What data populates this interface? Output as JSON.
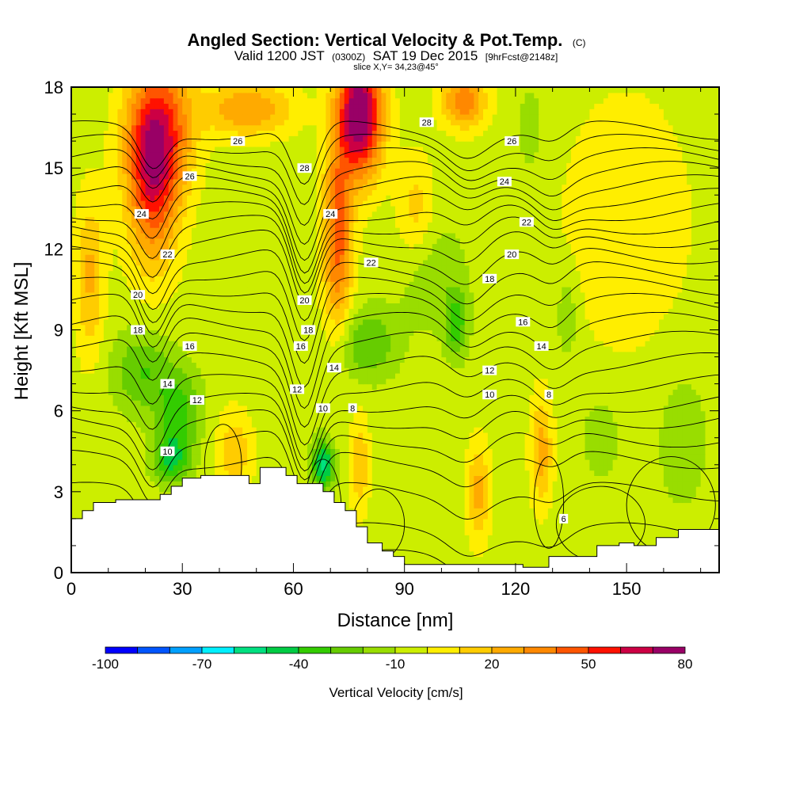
{
  "chart_data": {
    "type": "heatmap",
    "title": "Angled Section: Vertical Velocity & Pot.Temp.",
    "title_unit": "(C)",
    "subtitle_parts": [
      "Valid 1200 JST",
      "(0300Z)",
      "SAT 19 Dec 2015",
      "[9hrFcst@2148z]"
    ],
    "slice_note": "slice X,Y= 34,23@45°",
    "xlabel": "Distance [nm]",
    "ylabel": "Height [Kft MSL]",
    "xlim": [
      0,
      175
    ],
    "ylim": [
      0,
      18
    ],
    "x_ticks": [
      0,
      30,
      60,
      90,
      120,
      150
    ],
    "y_ticks": [
      0,
      3,
      6,
      9,
      12,
      15,
      18
    ],
    "background_value": -5,
    "cells": [
      {
        "x": 22,
        "y": 14.5,
        "v": 48,
        "sx": 7,
        "sy": 3.2
      },
      {
        "x": 24,
        "y": 16.5,
        "v": 40,
        "sx": 9,
        "sy": 2.5
      },
      {
        "x": 48,
        "y": 17.2,
        "v": 30,
        "sx": 12,
        "sy": 1.0
      },
      {
        "x": 78,
        "y": 17,
        "v": 85,
        "sx": 6,
        "sy": 2.3
      },
      {
        "x": 72,
        "y": 12.5,
        "v": 45,
        "sx": 4,
        "sy": 3.5
      },
      {
        "x": 106,
        "y": 17.5,
        "v": 38,
        "sx": 6,
        "sy": 1.0
      },
      {
        "x": 5,
        "y": 11,
        "v": 22,
        "sx": 4,
        "sy": 3
      },
      {
        "x": 19,
        "y": 7.5,
        "v": -30,
        "sx": 8,
        "sy": 1.5
      },
      {
        "x": 29,
        "y": 6,
        "v": -35,
        "sx": 6,
        "sy": 1.5
      },
      {
        "x": 27,
        "y": 4.2,
        "v": -40,
        "sx": 5,
        "sy": 0.9
      },
      {
        "x": 80,
        "y": 8.5,
        "v": -30,
        "sx": 8,
        "sy": 1.3
      },
      {
        "x": 68,
        "y": 4,
        "v": -55,
        "sx": 3,
        "sy": 0.9
      },
      {
        "x": 104,
        "y": 9.2,
        "v": -35,
        "sx": 3,
        "sy": 1.2
      },
      {
        "x": 98,
        "y": 11,
        "v": -18,
        "sx": 9,
        "sy": 2
      },
      {
        "x": 134,
        "y": 9.5,
        "v": -20,
        "sx": 3,
        "sy": 1.6
      },
      {
        "x": 165,
        "y": 5,
        "v": -15,
        "sx": 8,
        "sy": 3
      },
      {
        "x": 143,
        "y": 5,
        "v": -18,
        "sx": 5,
        "sy": 1.5
      },
      {
        "x": 124,
        "y": 16.5,
        "v": -18,
        "sx": 3,
        "sy": 1.5
      },
      {
        "x": 78,
        "y": 4,
        "v": 20,
        "sx": 2.5,
        "sy": 1.8
      },
      {
        "x": 110,
        "y": 3,
        "v": 25,
        "sx": 3,
        "sy": 1.8
      },
      {
        "x": 127,
        "y": 4.5,
        "v": 25,
        "sx": 3,
        "sy": 2
      },
      {
        "x": 44,
        "y": 4.5,
        "v": 18,
        "sx": 5,
        "sy": 1.5
      },
      {
        "x": 93,
        "y": 13.5,
        "v": 14,
        "sx": 5,
        "sy": 2
      },
      {
        "x": 150,
        "y": 13,
        "v": 8,
        "sx": 18,
        "sy": 5
      }
    ],
    "color_levels": [
      -100,
      -90,
      -80,
      -70,
      -60,
      -50,
      -40,
      -30,
      -20,
      -10,
      0,
      10,
      20,
      30,
      40,
      50,
      60,
      70,
      80
    ],
    "colors": [
      "#0000ff",
      "#0055ff",
      "#00a0ff",
      "#00f0ff",
      "#00e080",
      "#00cc44",
      "#33cc00",
      "#66cc00",
      "#99dd00",
      "#ccee00",
      "#ffee00",
      "#ffcc00",
      "#ffaa00",
      "#ff8800",
      "#ff5500",
      "#ff1100",
      "#cc0044",
      "#990066"
    ],
    "colorbar_labels": [
      "-100",
      "-70",
      "-40",
      "-10",
      "20",
      "50",
      "80"
    ],
    "colorbar_label_values": [
      -100,
      -70,
      -40,
      -10,
      20,
      50,
      80
    ],
    "colorbar_title": "Vertical Velocity [cm/s]",
    "theta_contours": [
      6,
      7,
      8,
      9,
      10,
      11,
      12,
      13,
      14,
      15,
      16,
      17,
      18,
      19,
      20,
      21,
      22,
      23,
      24,
      25,
      26,
      27,
      28,
      29
    ],
    "theta_level_heights": [
      0.5,
      1.5,
      3.0,
      4.2,
      5.0,
      5.7,
      6.3,
      7.0,
      7.8,
      8.6,
      9.3,
      10.0,
      10.6,
      11.2,
      11.8,
      12.4,
      12.9,
      13.4,
      13.9,
      14.4,
      14.9,
      15.4,
      15.9,
      16.4
    ],
    "contour_labels": [
      {
        "x": 45,
        "y": 16.0,
        "text": "26"
      },
      {
        "x": 32,
        "y": 14.7,
        "text": "26"
      },
      {
        "x": 19,
        "y": 13.3,
        "text": "24"
      },
      {
        "x": 26,
        "y": 11.8,
        "text": "22"
      },
      {
        "x": 18,
        "y": 10.3,
        "text": "20"
      },
      {
        "x": 18,
        "y": 9.0,
        "text": "18"
      },
      {
        "x": 32,
        "y": 8.4,
        "text": "16"
      },
      {
        "x": 26,
        "y": 7.0,
        "text": "14"
      },
      {
        "x": 34,
        "y": 6.4,
        "text": "12"
      },
      {
        "x": 26,
        "y": 4.5,
        "text": "10"
      },
      {
        "x": 63,
        "y": 10.1,
        "text": "20"
      },
      {
        "x": 64,
        "y": 9.0,
        "text": "18"
      },
      {
        "x": 62,
        "y": 8.4,
        "text": "16"
      },
      {
        "x": 61,
        "y": 6.8,
        "text": "12"
      },
      {
        "x": 68,
        "y": 6.1,
        "text": "10"
      },
      {
        "x": 70,
        "y": 13.3,
        "text": "24"
      },
      {
        "x": 63,
        "y": 15.0,
        "text": "28"
      },
      {
        "x": 76,
        "y": 6.1,
        "text": "8"
      },
      {
        "x": 71,
        "y": 7.6,
        "text": "14"
      },
      {
        "x": 81,
        "y": 11.5,
        "text": "22"
      },
      {
        "x": 96,
        "y": 16.7,
        "text": "28"
      },
      {
        "x": 119,
        "y": 16.0,
        "text": "26"
      },
      {
        "x": 117,
        "y": 14.5,
        "text": "24"
      },
      {
        "x": 123,
        "y": 13.0,
        "text": "22"
      },
      {
        "x": 119,
        "y": 11.8,
        "text": "20"
      },
      {
        "x": 113,
        "y": 10.9,
        "text": "18"
      },
      {
        "x": 122,
        "y": 9.3,
        "text": "16"
      },
      {
        "x": 127,
        "y": 8.4,
        "text": "14"
      },
      {
        "x": 113,
        "y": 7.5,
        "text": "12"
      },
      {
        "x": 113,
        "y": 6.6,
        "text": "10"
      },
      {
        "x": 129,
        "y": 6.6,
        "text": "8"
      },
      {
        "x": 133,
        "y": 2.0,
        "text": "6"
      }
    ],
    "terrain": [
      [
        0,
        2.0
      ],
      [
        3,
        2.0
      ],
      [
        3,
        2.3
      ],
      [
        6,
        2.3
      ],
      [
        6,
        2.6
      ],
      [
        12,
        2.6
      ],
      [
        12,
        2.7
      ],
      [
        24,
        2.7
      ],
      [
        24,
        2.9
      ],
      [
        27,
        2.9
      ],
      [
        27,
        3.2
      ],
      [
        30,
        3.2
      ],
      [
        30,
        3.5
      ],
      [
        35,
        3.5
      ],
      [
        35,
        3.6
      ],
      [
        48,
        3.6
      ],
      [
        48,
        3.3
      ],
      [
        51,
        3.3
      ],
      [
        51,
        3.9
      ],
      [
        58,
        3.9
      ],
      [
        58,
        3.6
      ],
      [
        61,
        3.6
      ],
      [
        61,
        3.3
      ],
      [
        68,
        3.3
      ],
      [
        68,
        3.0
      ],
      [
        71,
        3.0
      ],
      [
        71,
        2.6
      ],
      [
        74,
        2.6
      ],
      [
        74,
        2.3
      ],
      [
        77,
        2.3
      ],
      [
        77,
        1.7
      ],
      [
        80,
        1.7
      ],
      [
        80,
        1.1
      ],
      [
        84,
        1.1
      ],
      [
        84,
        0.8
      ],
      [
        87,
        0.8
      ],
      [
        87,
        0.6
      ],
      [
        90,
        0.6
      ],
      [
        90,
        0.3
      ],
      [
        122,
        0.3
      ],
      [
        122,
        0.2
      ],
      [
        129,
        0.2
      ],
      [
        129,
        0.6
      ],
      [
        142,
        0.6
      ],
      [
        142,
        1.0
      ],
      [
        148,
        1.0
      ],
      [
        148,
        1.1
      ],
      [
        152,
        1.1
      ],
      [
        152,
        1.0
      ],
      [
        158,
        1.0
      ],
      [
        158,
        1.3
      ],
      [
        164,
        1.3
      ],
      [
        164,
        1.6
      ],
      [
        175,
        1.6
      ]
    ]
  }
}
